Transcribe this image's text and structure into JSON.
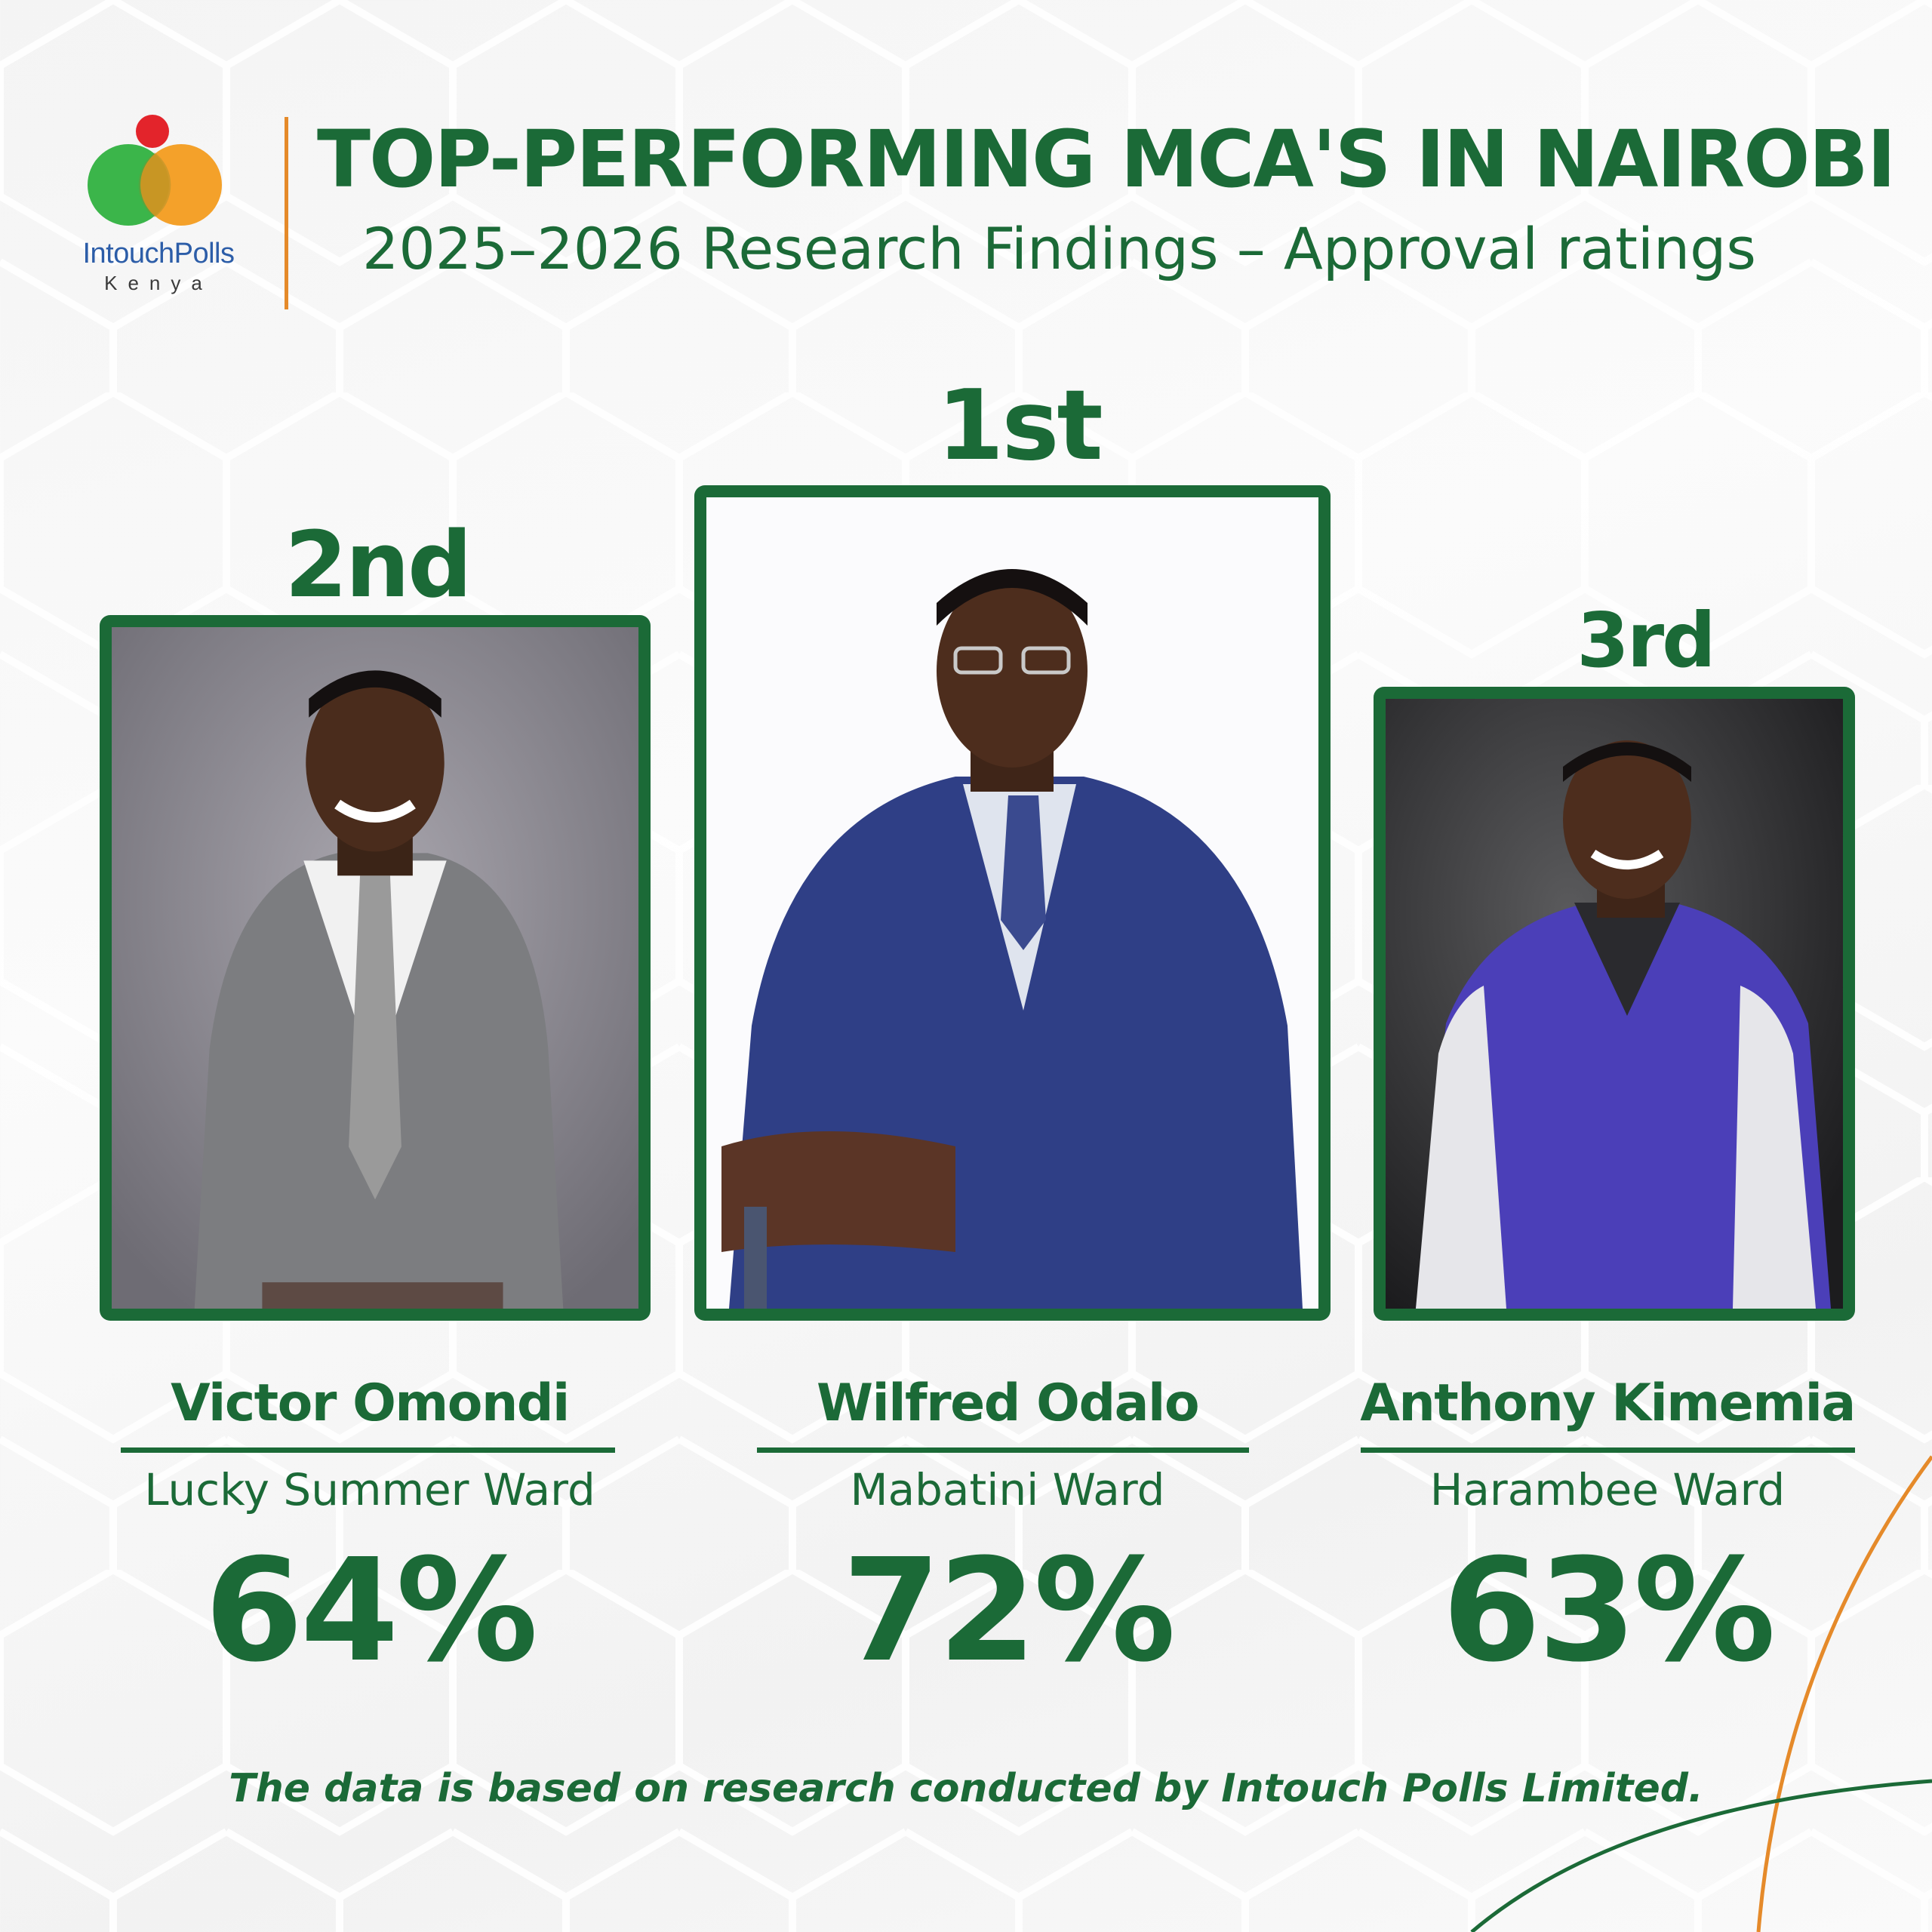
{
  "brand": {
    "name": "IntouchPolls",
    "sub": "Kenya",
    "colors": {
      "green": "#1b6a37",
      "orange": "#e58a2a",
      "logo_red": "#e3242b",
      "logo_green": "#3bb54a",
      "logo_orange": "#f39c1f",
      "logo_blue": "#2c5da8"
    }
  },
  "header": {
    "title": "TOP-PERFORMING MCA'S IN NAIROBI",
    "subtitle": "2025–2026 Research Findings – Approval ratings"
  },
  "candidates": [
    {
      "rank": "2nd",
      "name": "Victor Omondi",
      "ward": "Lucky Summer Ward",
      "approval": "64%"
    },
    {
      "rank": "1st",
      "name": "Wilfred Odalo",
      "ward": "Mabatini Ward",
      "approval": "72%"
    },
    {
      "rank": "3rd",
      "name": "Anthony Kimemia",
      "ward": "Harambee Ward",
      "approval": "63%"
    }
  ],
  "footer": {
    "note": "The data is based on research conducted by Intouch Polls Limited."
  }
}
